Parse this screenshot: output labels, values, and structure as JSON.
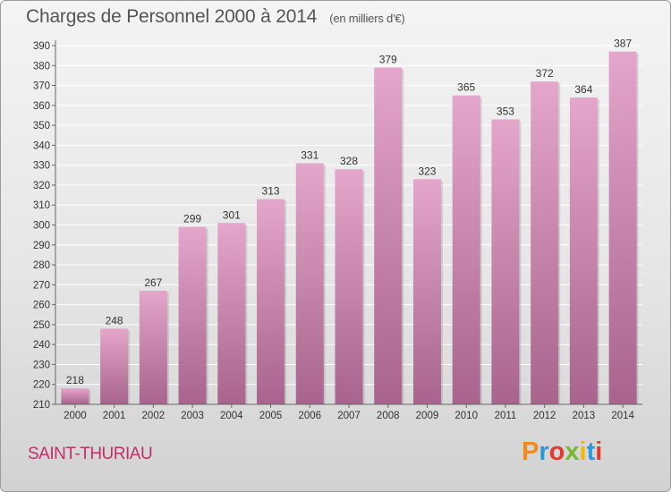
{
  "header": {
    "title": "Charges de Personnel 2000 à 2014",
    "subtitle": "(en milliers d'€)"
  },
  "footer": {
    "place": "SAINT-THURIAU",
    "logo_text": "Proxiti",
    "logo_colors": [
      "#f28b1e",
      "#2a9ad6",
      "#e6392d",
      "#7ab82f",
      "#f5b700",
      "#2a9ad6",
      "#e6392d"
    ]
  },
  "colors": {
    "bar_top": "#e4a6ca",
    "bar_bottom": "#a8648c",
    "grid": "#ffffff",
    "text": "#333333"
  },
  "chart_data": {
    "type": "bar",
    "title": "Charges de Personnel 2000 à 2014",
    "subtitle": "(en milliers d'€)",
    "xlabel": "",
    "ylabel": "",
    "categories": [
      "2000",
      "2001",
      "2002",
      "2003",
      "2004",
      "2005",
      "2006",
      "2007",
      "2008",
      "2009",
      "2010",
      "2011",
      "2012",
      "2013",
      "2014"
    ],
    "values": [
      218,
      248,
      267,
      299,
      301,
      313,
      331,
      328,
      379,
      323,
      365,
      353,
      372,
      364,
      387
    ],
    "ylim": [
      210,
      390
    ],
    "yticks": [
      210,
      220,
      230,
      240,
      250,
      260,
      270,
      280,
      290,
      300,
      310,
      320,
      330,
      340,
      350,
      360,
      370,
      380,
      390
    ],
    "grid": true,
    "legend": "none"
  }
}
